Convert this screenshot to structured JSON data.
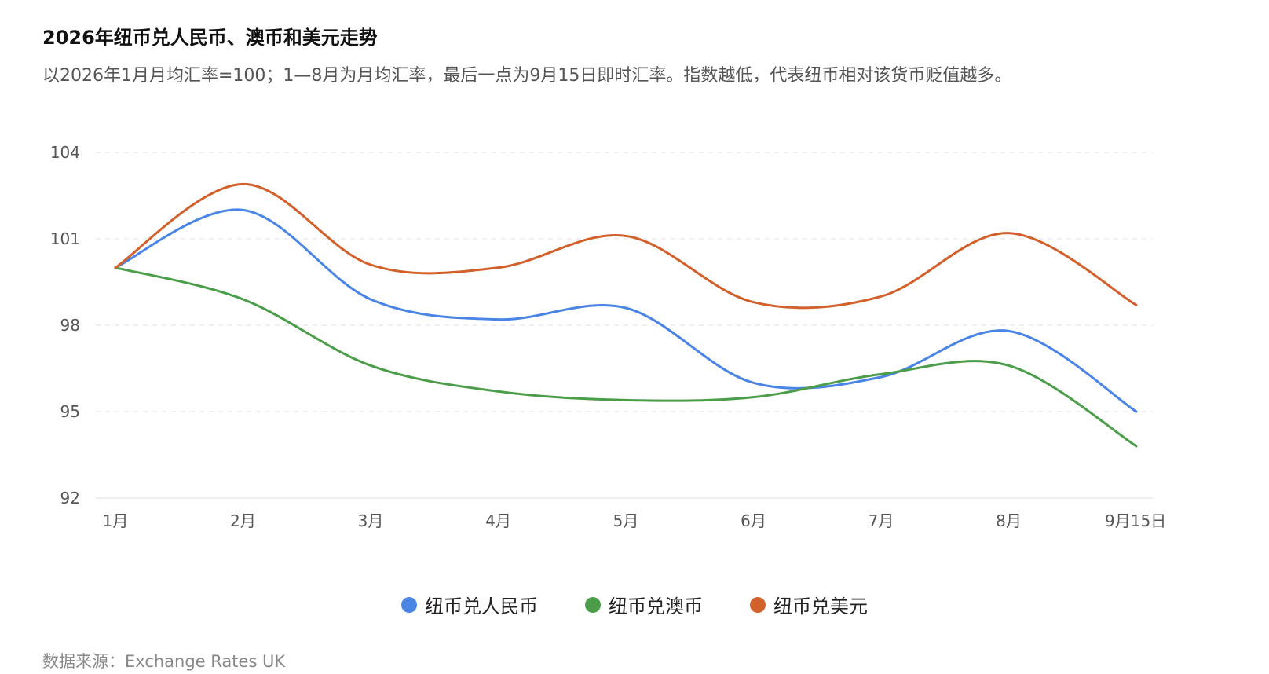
{
  "chart_data": {
    "type": "line",
    "title": "2026年纽币兑人民币、澳币和美元走势",
    "subtitle": "以2026年1月月均汇率=100；1—8月为月均汇率，最后一点为9月15日即时汇率。指数越低，代表纽币相对该货币贬值越多。",
    "categories": [
      "1月",
      "2月",
      "3月",
      "4月",
      "5月",
      "6月",
      "7月",
      "8月",
      "9月15日"
    ],
    "y_ticks": [
      "104",
      "101",
      "98",
      "95",
      "92"
    ],
    "ylim": [
      92,
      104
    ],
    "grid": true,
    "legend_position": "bottom-center",
    "series": [
      {
        "name": "纽币兑人民币",
        "color": "#4a85e6",
        "values": [
          100,
          102.0,
          98.9,
          98.2,
          98.6,
          96.0,
          96.2,
          97.8,
          95.0
        ]
      },
      {
        "name": "纽币兑澳币",
        "color": "#4b9d49",
        "values": [
          100,
          98.9,
          96.6,
          95.7,
          95.4,
          95.5,
          96.3,
          96.6,
          93.8
        ]
      },
      {
        "name": "纽币兑美元",
        "color": "#d2602b",
        "values": [
          100,
          102.9,
          100.1,
          100.0,
          101.1,
          98.8,
          99.0,
          101.2,
          98.7
        ]
      }
    ],
    "source": "数据来源：Exchange Rates UK"
  }
}
